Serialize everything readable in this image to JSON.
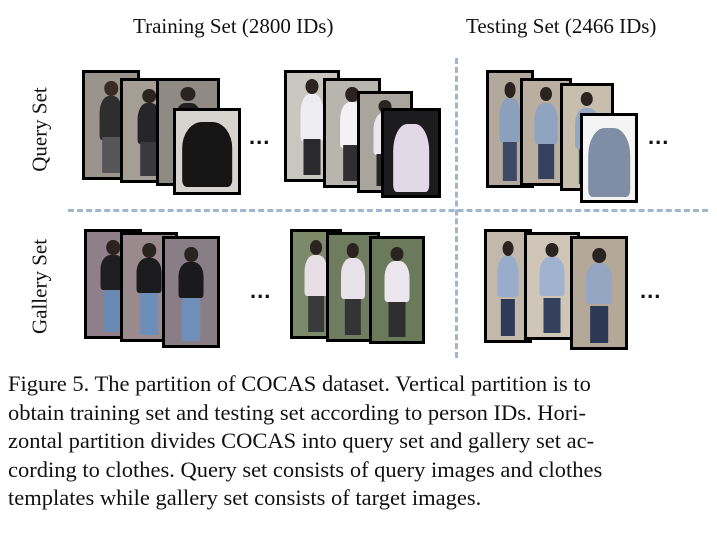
{
  "columns": {
    "training_title": "Training Set (2800 IDs)",
    "testing_title": "Testing Set (2466 IDs)"
  },
  "rows": {
    "query_label": "Query Set",
    "gallery_label": "Gallery Set"
  },
  "ellipsis": "...",
  "caption_lines": [
    "Figure 5. The partition of COCAS dataset. Vertical partition is to",
    "obtain training set and testing set according to person IDs. Hori-",
    "zontal partition divides COCAS into query set and gallery set ac-",
    "cording to clothes. Query set consists of query images and clothes",
    "templates while gallery set consists of target images."
  ],
  "colors": {
    "divider": "#9fb6cf",
    "frame": "#000000"
  }
}
